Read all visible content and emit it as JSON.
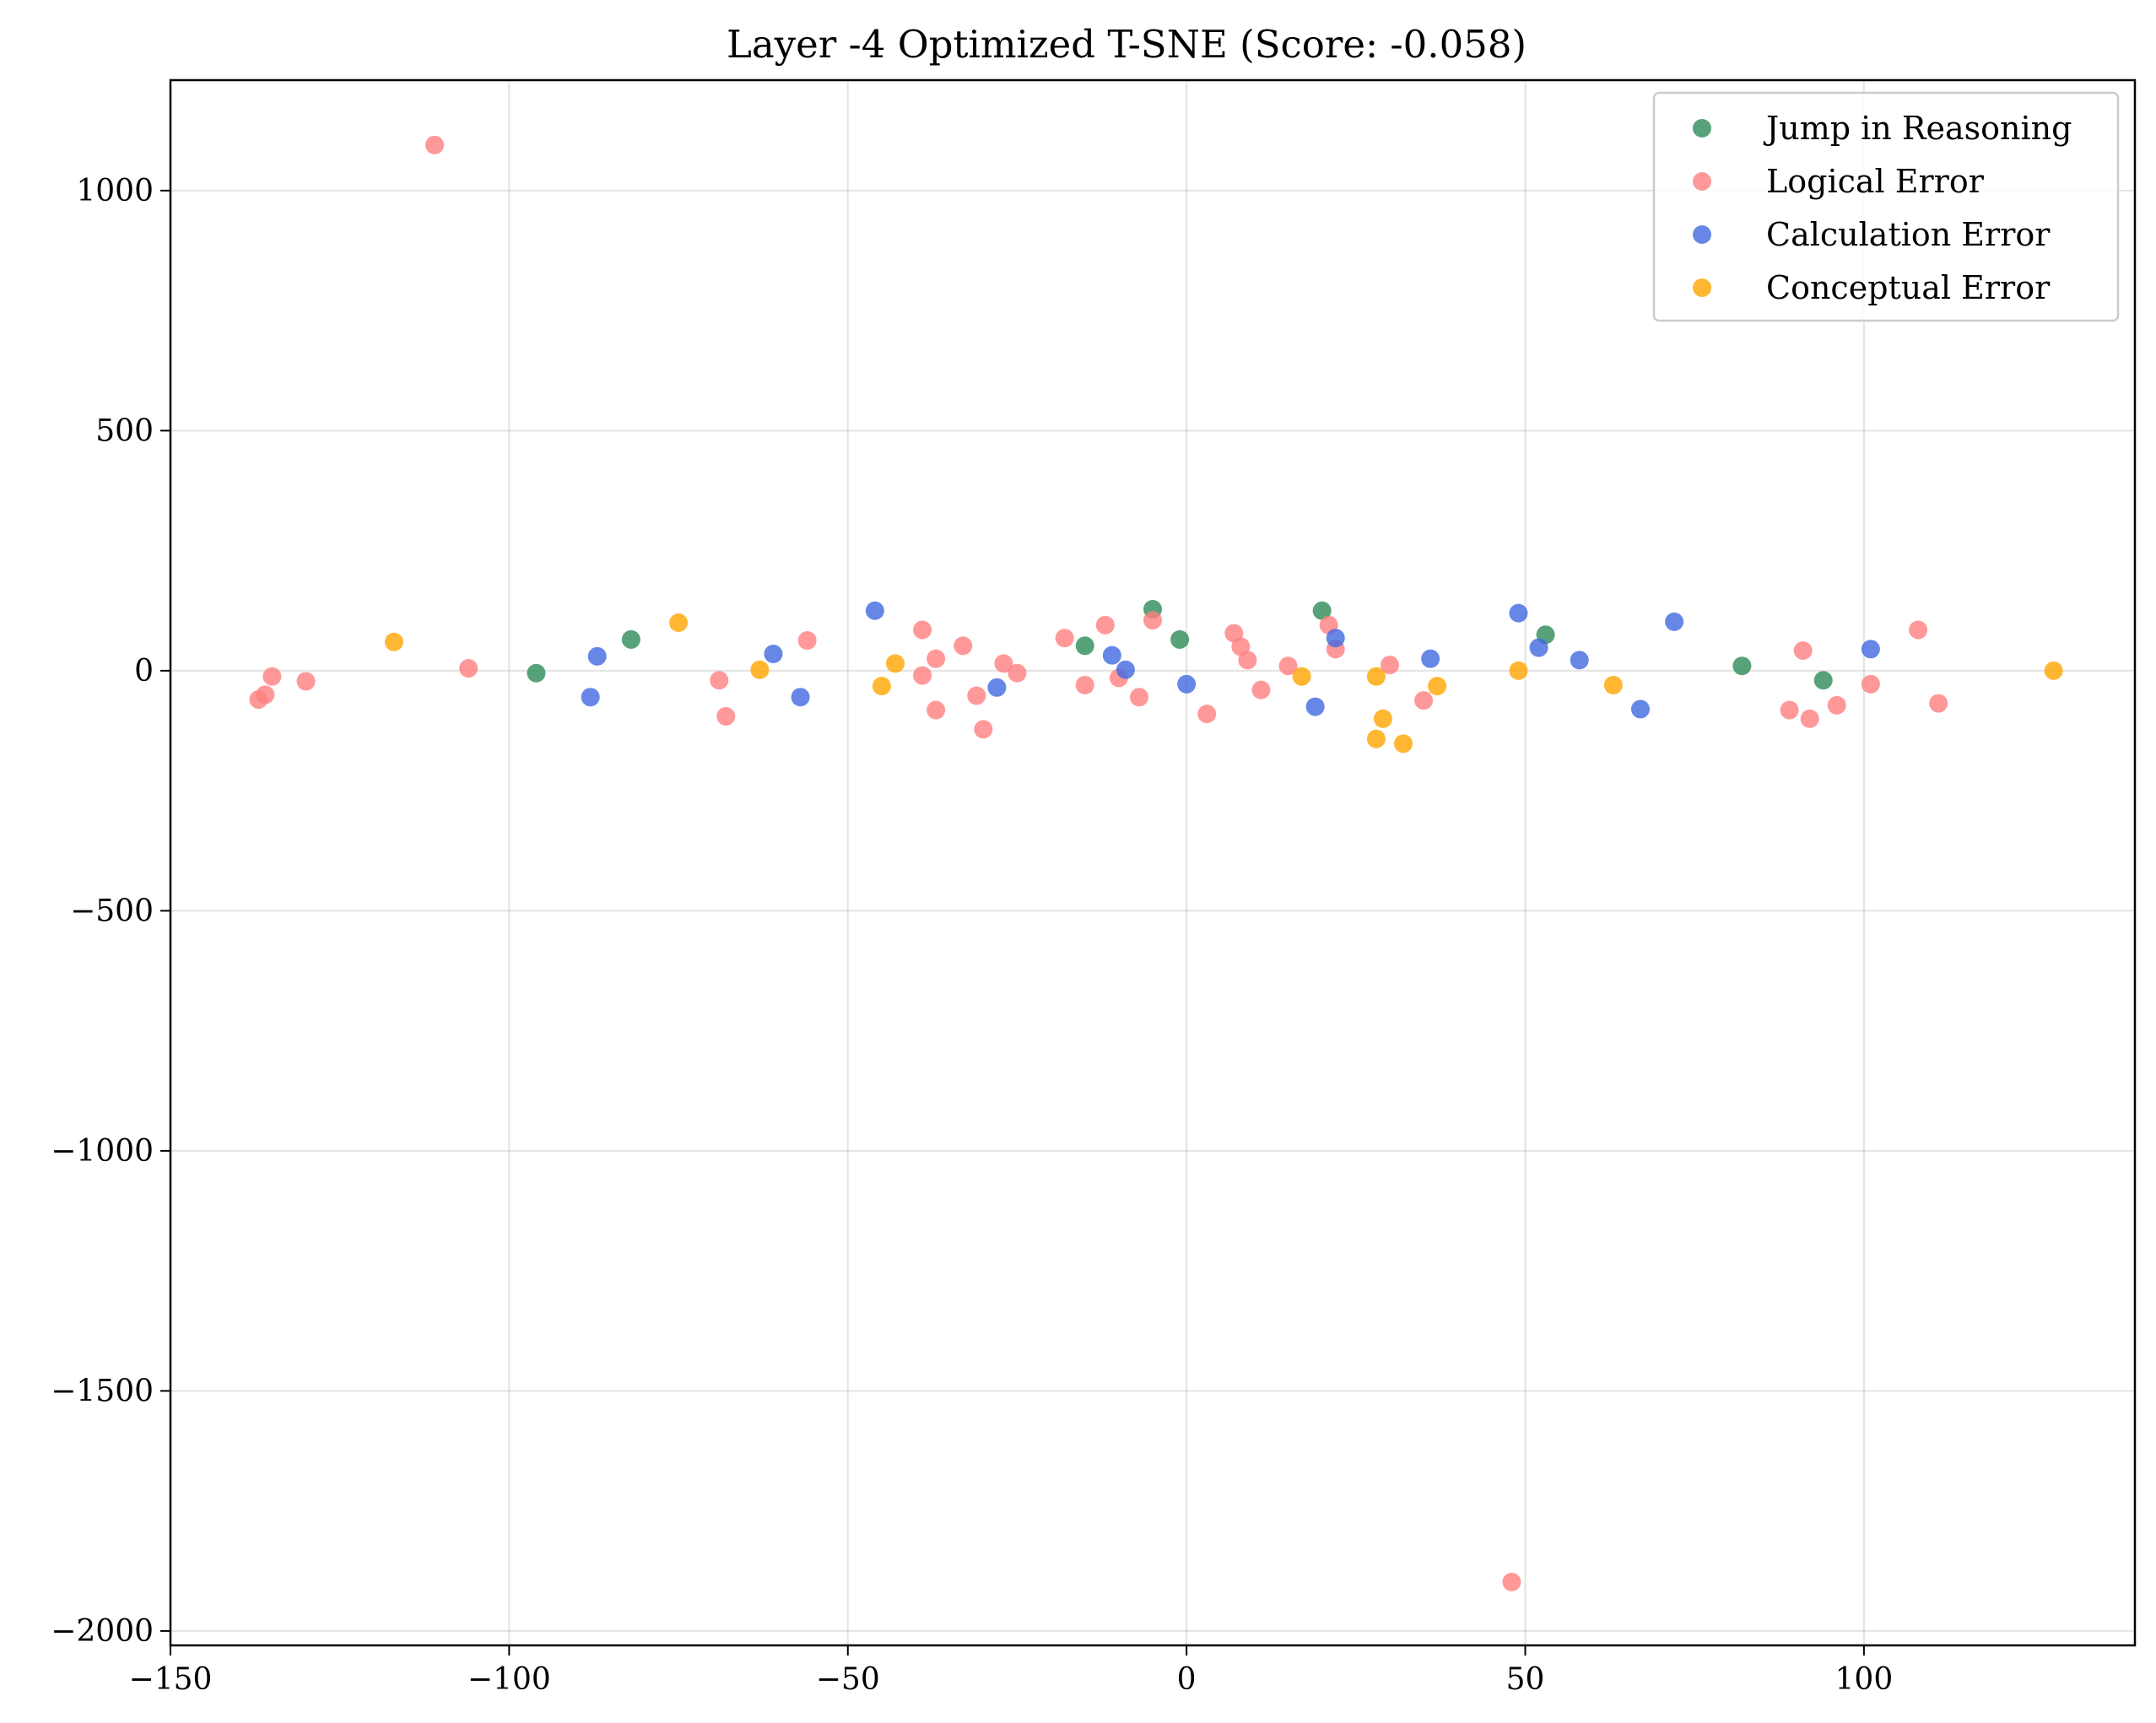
{
  "chart_data": {
    "type": "scatter",
    "title": "Layer -4 Optimized T-SNE (Score: -0.058)",
    "xlabel": "",
    "ylabel": "",
    "xlim": [
      -150,
      140
    ],
    "ylim": [
      -2030,
      1230
    ],
    "x_ticks": [
      -150,
      -100,
      -50,
      0,
      50,
      100
    ],
    "y_ticks": [
      -2000,
      -1500,
      -1000,
      -500,
      0,
      500,
      1000
    ],
    "x_tick_labels": [
      "−150",
      "−100",
      "−50",
      "0",
      "50",
      "100"
    ],
    "y_tick_labels": [
      "−2000",
      "−1500",
      "−1000",
      "−500",
      "0",
      "500",
      "1000"
    ],
    "grid": true,
    "legend_position": "top-right",
    "series": [
      {
        "name": "Jump in Reasoning",
        "color": "#2e8b57",
        "points": [
          [
            -96,
            -5
          ],
          [
            -82,
            65
          ],
          [
            -15,
            52
          ],
          [
            -5,
            128
          ],
          [
            -1,
            65
          ],
          [
            20,
            125
          ],
          [
            53,
            75
          ],
          [
            82,
            10
          ],
          [
            94,
            -20
          ]
        ]
      },
      {
        "name": "Logical Error",
        "color": "#ff7f7f",
        "points": [
          [
            -111,
            1095
          ],
          [
            -137,
            -60
          ],
          [
            -136,
            -50
          ],
          [
            -135,
            -12
          ],
          [
            -130,
            -22
          ],
          [
            -106,
            5
          ],
          [
            -69,
            -20
          ],
          [
            -68,
            -95
          ],
          [
            -56,
            63
          ],
          [
            -39,
            -10
          ],
          [
            -39,
            85
          ],
          [
            -37,
            25
          ],
          [
            -37,
            -82
          ],
          [
            -33,
            52
          ],
          [
            -31,
            -52
          ],
          [
            -30,
            -122
          ],
          [
            -27,
            15
          ],
          [
            -25,
            -5
          ],
          [
            -18,
            68
          ],
          [
            -15,
            -30
          ],
          [
            -12,
            95
          ],
          [
            -10,
            -15
          ],
          [
            -7,
            -55
          ],
          [
            -5,
            105
          ],
          [
            3,
            -90
          ],
          [
            7,
            78
          ],
          [
            8,
            50
          ],
          [
            9,
            22
          ],
          [
            11,
            -40
          ],
          [
            15,
            10
          ],
          [
            21,
            95
          ],
          [
            22,
            45
          ],
          [
            30,
            12
          ],
          [
            35,
            -62
          ],
          [
            48,
            -1898
          ],
          [
            89,
            -82
          ],
          [
            91,
            42
          ],
          [
            92,
            -100
          ],
          [
            96,
            -72
          ],
          [
            101,
            -28
          ],
          [
            108,
            85
          ],
          [
            111,
            -68
          ]
        ]
      },
      {
        "name": "Calculation Error",
        "color": "#4169e1",
        "points": [
          [
            -88,
            -55
          ],
          [
            -87,
            30
          ],
          [
            -61,
            35
          ],
          [
            -57,
            -55
          ],
          [
            -46,
            125
          ],
          [
            -28,
            -35
          ],
          [
            -11,
            32
          ],
          [
            -9,
            2
          ],
          [
            0,
            -28
          ],
          [
            19,
            -75
          ],
          [
            22,
            68
          ],
          [
            36,
            25
          ],
          [
            49,
            120
          ],
          [
            52,
            48
          ],
          [
            58,
            22
          ],
          [
            67,
            -80
          ],
          [
            72,
            102
          ],
          [
            101,
            45
          ]
        ]
      },
      {
        "name": "Conceptual Error",
        "color": "#ffa500",
        "points": [
          [
            -117,
            60
          ],
          [
            -75,
            100
          ],
          [
            -63,
            2
          ],
          [
            -45,
            -32
          ],
          [
            -43,
            15
          ],
          [
            17,
            -12
          ],
          [
            28,
            -12
          ],
          [
            28,
            -142
          ],
          [
            29,
            -100
          ],
          [
            32,
            -152
          ],
          [
            37,
            -32
          ],
          [
            49,
            0
          ],
          [
            63,
            -30
          ],
          [
            128,
            0
          ]
        ]
      }
    ]
  }
}
